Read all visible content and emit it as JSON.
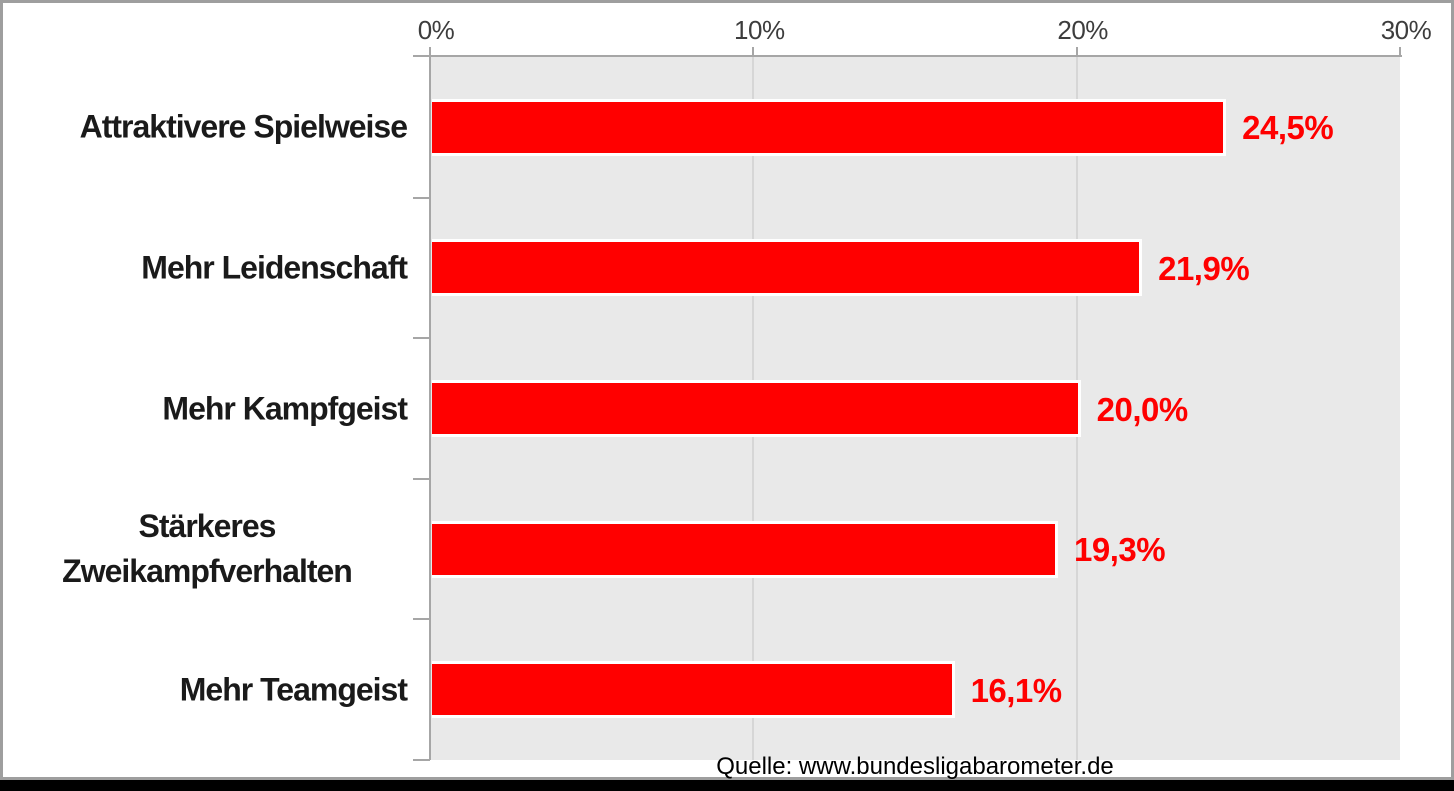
{
  "chart_data": {
    "type": "bar",
    "orientation": "horizontal",
    "title": "",
    "categories": [
      "Attraktivere Spielweise",
      "Mehr Leidenschaft",
      "Mehr Kampfgeist",
      "Stärkeres Zweikampfverhalten",
      "Mehr Teamgeist"
    ],
    "values": [
      24.5,
      21.9,
      20.0,
      19.3,
      16.1
    ],
    "value_labels": [
      "24,5%",
      "21,9%",
      "20,0%",
      "19,3%",
      "16,1%"
    ],
    "x_ticks": [
      {
        "value": 0,
        "label": "0%"
      },
      {
        "value": 10,
        "label": "10%"
      },
      {
        "value": 20,
        "label": "20%"
      },
      {
        "value": 30,
        "label": "30%"
      }
    ],
    "xlim": [
      0,
      30
    ],
    "grid": true,
    "legend": "none",
    "axis_position": "top",
    "source": "Quelle: www.bundesligabarometer.de",
    "colors": {
      "bar": "#FF0000",
      "value_label": "#FF0000",
      "category_label": "#1A1A1A",
      "tick_label": "#3D3D3D",
      "plot_background": "#E9E9E9",
      "gridline": "#D6D6D6",
      "axis": "#A6A6A6",
      "frame_border": "#9E9E9E",
      "bottom_strip": "#000000"
    }
  }
}
